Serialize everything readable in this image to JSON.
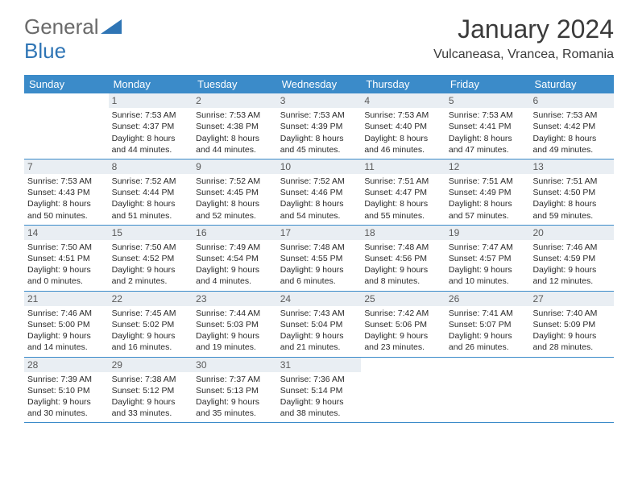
{
  "logo": {
    "text1": "General",
    "text2": "Blue"
  },
  "title": "January 2024",
  "location": "Vulcaneasa, Vrancea, Romania",
  "colors": {
    "header_bg": "#3b8bc9",
    "header_text": "#ffffff",
    "daynum_bg": "#e9eef3",
    "daynum_text": "#5a5a5a",
    "body_text": "#2a2a2a",
    "rule": "#3b8bc9",
    "logo_gray": "#6a6a6a",
    "logo_blue": "#2f75b5",
    "title_color": "#3a3a3a",
    "background": "#ffffff"
  },
  "typography": {
    "title_fontsize": 32,
    "location_fontsize": 16,
    "logo_fontsize": 26,
    "dayhead_fontsize": 13,
    "daynum_fontsize": 12,
    "cell_fontsize": 10.5
  },
  "days_of_week": [
    "Sunday",
    "Monday",
    "Tuesday",
    "Wednesday",
    "Thursday",
    "Friday",
    "Saturday"
  ],
  "weeks": [
    [
      {
        "n": "",
        "sunrise": "",
        "sunset": "",
        "daylight": ""
      },
      {
        "n": "1",
        "sunrise": "Sunrise: 7:53 AM",
        "sunset": "Sunset: 4:37 PM",
        "daylight": "Daylight: 8 hours and 44 minutes."
      },
      {
        "n": "2",
        "sunrise": "Sunrise: 7:53 AM",
        "sunset": "Sunset: 4:38 PM",
        "daylight": "Daylight: 8 hours and 44 minutes."
      },
      {
        "n": "3",
        "sunrise": "Sunrise: 7:53 AM",
        "sunset": "Sunset: 4:39 PM",
        "daylight": "Daylight: 8 hours and 45 minutes."
      },
      {
        "n": "4",
        "sunrise": "Sunrise: 7:53 AM",
        "sunset": "Sunset: 4:40 PM",
        "daylight": "Daylight: 8 hours and 46 minutes."
      },
      {
        "n": "5",
        "sunrise": "Sunrise: 7:53 AM",
        "sunset": "Sunset: 4:41 PM",
        "daylight": "Daylight: 8 hours and 47 minutes."
      },
      {
        "n": "6",
        "sunrise": "Sunrise: 7:53 AM",
        "sunset": "Sunset: 4:42 PM",
        "daylight": "Daylight: 8 hours and 49 minutes."
      }
    ],
    [
      {
        "n": "7",
        "sunrise": "Sunrise: 7:53 AM",
        "sunset": "Sunset: 4:43 PM",
        "daylight": "Daylight: 8 hours and 50 minutes."
      },
      {
        "n": "8",
        "sunrise": "Sunrise: 7:52 AM",
        "sunset": "Sunset: 4:44 PM",
        "daylight": "Daylight: 8 hours and 51 minutes."
      },
      {
        "n": "9",
        "sunrise": "Sunrise: 7:52 AM",
        "sunset": "Sunset: 4:45 PM",
        "daylight": "Daylight: 8 hours and 52 minutes."
      },
      {
        "n": "10",
        "sunrise": "Sunrise: 7:52 AM",
        "sunset": "Sunset: 4:46 PM",
        "daylight": "Daylight: 8 hours and 54 minutes."
      },
      {
        "n": "11",
        "sunrise": "Sunrise: 7:51 AM",
        "sunset": "Sunset: 4:47 PM",
        "daylight": "Daylight: 8 hours and 55 minutes."
      },
      {
        "n": "12",
        "sunrise": "Sunrise: 7:51 AM",
        "sunset": "Sunset: 4:49 PM",
        "daylight": "Daylight: 8 hours and 57 minutes."
      },
      {
        "n": "13",
        "sunrise": "Sunrise: 7:51 AM",
        "sunset": "Sunset: 4:50 PM",
        "daylight": "Daylight: 8 hours and 59 minutes."
      }
    ],
    [
      {
        "n": "14",
        "sunrise": "Sunrise: 7:50 AM",
        "sunset": "Sunset: 4:51 PM",
        "daylight": "Daylight: 9 hours and 0 minutes."
      },
      {
        "n": "15",
        "sunrise": "Sunrise: 7:50 AM",
        "sunset": "Sunset: 4:52 PM",
        "daylight": "Daylight: 9 hours and 2 minutes."
      },
      {
        "n": "16",
        "sunrise": "Sunrise: 7:49 AM",
        "sunset": "Sunset: 4:54 PM",
        "daylight": "Daylight: 9 hours and 4 minutes."
      },
      {
        "n": "17",
        "sunrise": "Sunrise: 7:48 AM",
        "sunset": "Sunset: 4:55 PM",
        "daylight": "Daylight: 9 hours and 6 minutes."
      },
      {
        "n": "18",
        "sunrise": "Sunrise: 7:48 AM",
        "sunset": "Sunset: 4:56 PM",
        "daylight": "Daylight: 9 hours and 8 minutes."
      },
      {
        "n": "19",
        "sunrise": "Sunrise: 7:47 AM",
        "sunset": "Sunset: 4:57 PM",
        "daylight": "Daylight: 9 hours and 10 minutes."
      },
      {
        "n": "20",
        "sunrise": "Sunrise: 7:46 AM",
        "sunset": "Sunset: 4:59 PM",
        "daylight": "Daylight: 9 hours and 12 minutes."
      }
    ],
    [
      {
        "n": "21",
        "sunrise": "Sunrise: 7:46 AM",
        "sunset": "Sunset: 5:00 PM",
        "daylight": "Daylight: 9 hours and 14 minutes."
      },
      {
        "n": "22",
        "sunrise": "Sunrise: 7:45 AM",
        "sunset": "Sunset: 5:02 PM",
        "daylight": "Daylight: 9 hours and 16 minutes."
      },
      {
        "n": "23",
        "sunrise": "Sunrise: 7:44 AM",
        "sunset": "Sunset: 5:03 PM",
        "daylight": "Daylight: 9 hours and 19 minutes."
      },
      {
        "n": "24",
        "sunrise": "Sunrise: 7:43 AM",
        "sunset": "Sunset: 5:04 PM",
        "daylight": "Daylight: 9 hours and 21 minutes."
      },
      {
        "n": "25",
        "sunrise": "Sunrise: 7:42 AM",
        "sunset": "Sunset: 5:06 PM",
        "daylight": "Daylight: 9 hours and 23 minutes."
      },
      {
        "n": "26",
        "sunrise": "Sunrise: 7:41 AM",
        "sunset": "Sunset: 5:07 PM",
        "daylight": "Daylight: 9 hours and 26 minutes."
      },
      {
        "n": "27",
        "sunrise": "Sunrise: 7:40 AM",
        "sunset": "Sunset: 5:09 PM",
        "daylight": "Daylight: 9 hours and 28 minutes."
      }
    ],
    [
      {
        "n": "28",
        "sunrise": "Sunrise: 7:39 AM",
        "sunset": "Sunset: 5:10 PM",
        "daylight": "Daylight: 9 hours and 30 minutes."
      },
      {
        "n": "29",
        "sunrise": "Sunrise: 7:38 AM",
        "sunset": "Sunset: 5:12 PM",
        "daylight": "Daylight: 9 hours and 33 minutes."
      },
      {
        "n": "30",
        "sunrise": "Sunrise: 7:37 AM",
        "sunset": "Sunset: 5:13 PM",
        "daylight": "Daylight: 9 hours and 35 minutes."
      },
      {
        "n": "31",
        "sunrise": "Sunrise: 7:36 AM",
        "sunset": "Sunset: 5:14 PM",
        "daylight": "Daylight: 9 hours and 38 minutes."
      },
      {
        "n": "",
        "sunrise": "",
        "sunset": "",
        "daylight": ""
      },
      {
        "n": "",
        "sunrise": "",
        "sunset": "",
        "daylight": ""
      },
      {
        "n": "",
        "sunrise": "",
        "sunset": "",
        "daylight": ""
      }
    ]
  ]
}
